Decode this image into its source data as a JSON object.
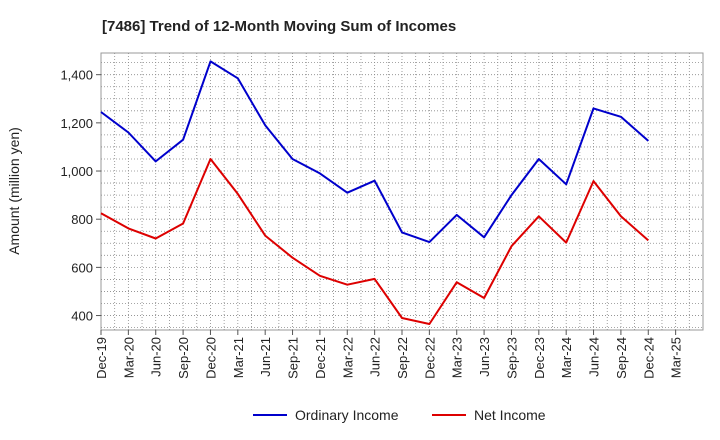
{
  "chart_data": {
    "type": "line",
    "title": "[7486]  Trend of 12-Month Moving Sum of Incomes",
    "xlabel": "",
    "ylabel": "Amount (million yen)",
    "ylim": [
      340,
      1490
    ],
    "yticks": [
      400,
      600,
      800,
      1000,
      1200,
      1400
    ],
    "ytick_labels": [
      "400",
      "600",
      "800",
      "1,000",
      "1,200",
      "1,400"
    ],
    "categories": [
      "Dec-19",
      "Mar-20",
      "Jun-20",
      "Sep-20",
      "Dec-20",
      "Mar-21",
      "Jun-21",
      "Sep-21",
      "Dec-21",
      "Mar-22",
      "Jun-22",
      "Sep-22",
      "Dec-22",
      "Mar-23",
      "Jun-23",
      "Sep-23",
      "Dec-23",
      "Mar-24",
      "Jun-24",
      "Sep-24",
      "Dec-24",
      "Mar-25"
    ],
    "grid": true,
    "legend_position": "bottom",
    "series": [
      {
        "name": "Ordinary Income",
        "color": "#0000cc",
        "values": [
          1245,
          1160,
          1040,
          1130,
          1455,
          1385,
          1190,
          1050,
          990,
          910,
          960,
          745,
          705,
          818,
          725,
          900,
          1050,
          945,
          1260,
          1225,
          1125,
          null
        ]
      },
      {
        "name": "Net Income",
        "color": "#dd0000",
        "values": [
          825,
          762,
          720,
          782,
          1050,
          905,
          732,
          640,
          565,
          528,
          552,
          390,
          365,
          538,
          473,
          688,
          812,
          703,
          958,
          812,
          712,
          null
        ]
      }
    ]
  }
}
